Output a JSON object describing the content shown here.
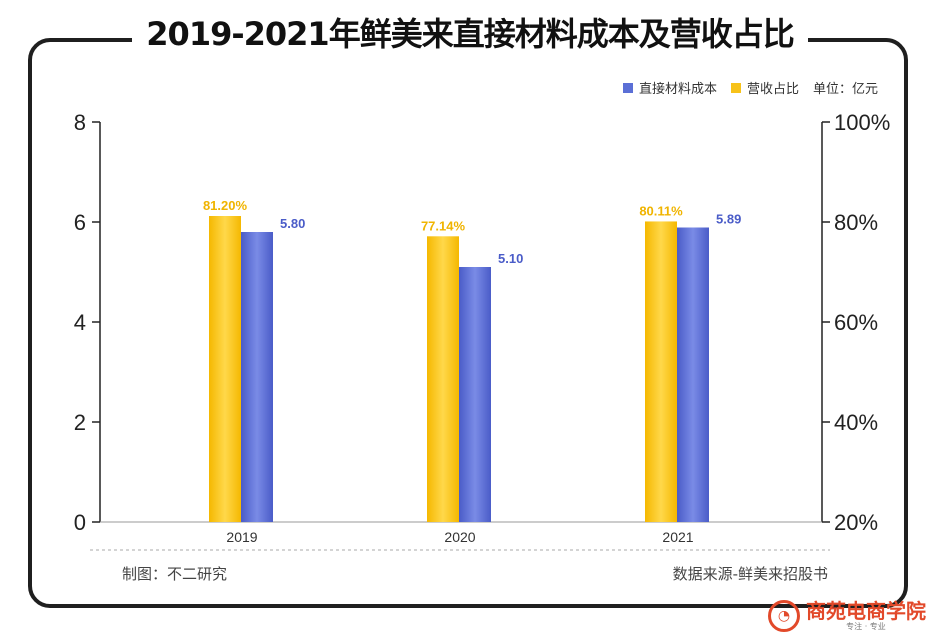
{
  "header": {
    "title": "2019-2021年鲜美来直接材料成本及营收占比"
  },
  "legend": {
    "items": [
      {
        "label": "直接材料成本",
        "color": "#5b6fd6"
      },
      {
        "label": "营收占比",
        "color": "#f7c21a"
      }
    ],
    "unit": "单位：亿元"
  },
  "footer": {
    "left": "制图：不二研究",
    "right": "数据来源-鲜美来招股书"
  },
  "brand": {
    "name": "商苑电商学院",
    "sub": "专注 · 专业"
  },
  "chart_data": {
    "type": "bar",
    "categories": [
      "2019",
      "2020",
      "2021"
    ],
    "series": [
      {
        "name": "营收占比",
        "axis": "right",
        "values": [
          81.2,
          77.14,
          80.11
        ],
        "labels": [
          "81.20%",
          "77.14%",
          "80.11%"
        ],
        "color": "#f7c21a"
      },
      {
        "name": "直接材料成本",
        "axis": "left",
        "values": [
          5.8,
          5.1,
          5.89
        ],
        "labels": [
          "5.80",
          "5.10",
          "5.89"
        ],
        "color": "#5b6fd6"
      }
    ],
    "left_axis": {
      "ylim": [
        0,
        8
      ],
      "ticks": [
        "0",
        "2",
        "4",
        "6",
        "8"
      ]
    },
    "right_axis": {
      "ylim": [
        20,
        100
      ],
      "ticks": [
        "20%",
        "40%",
        "60%",
        "80%",
        "100%"
      ]
    },
    "legend_position": "top-right"
  }
}
